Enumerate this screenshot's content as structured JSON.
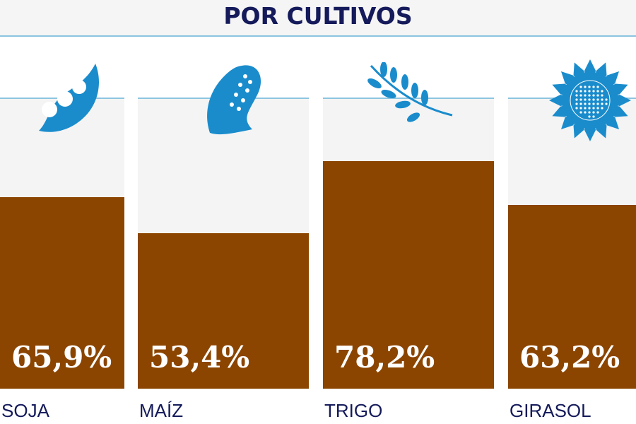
{
  "title": "POR CULTIVOS",
  "colors": {
    "bar": "#8b4500",
    "icon": "#1a8ccc",
    "track": "#f4f4f4",
    "text": "#141a5a"
  },
  "chart_data": {
    "type": "bar",
    "title": "POR CULTIVOS",
    "ylim": [
      0,
      100
    ],
    "categories": [
      "SOJA",
      "MAÍZ",
      "TRIGO",
      "GIRASOL"
    ],
    "values": [
      65.9,
      53.4,
      78.2,
      63.2
    ],
    "value_labels": [
      "65,9%",
      "53,4%",
      "78,2%",
      "63,2%"
    ],
    "icons": [
      "soybean-pod-icon",
      "corn-icon",
      "wheat-icon",
      "sunflower-icon"
    ]
  }
}
